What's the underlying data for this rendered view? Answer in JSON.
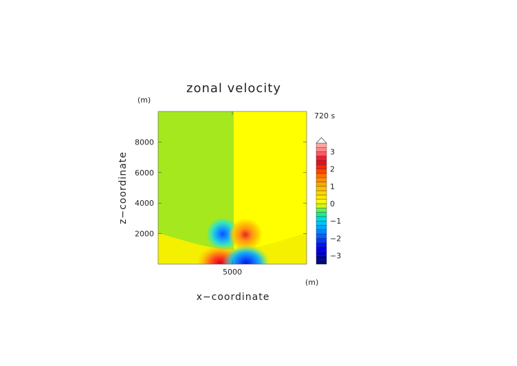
{
  "chart_data": {
    "type": "heatmap",
    "title": "zonal velocity",
    "xlabel": "x−coordinate",
    "ylabel": "z−coordinate",
    "x_unit": "(m)",
    "y_unit": "(m)",
    "time_label": "720 s",
    "xlim": [
      0,
      10000
    ],
    "ylim": [
      0,
      10000
    ],
    "x_ticks": [
      {
        "value": 5000,
        "label": "5000"
      }
    ],
    "y_ticks": [
      {
        "value": 2000,
        "label": "2000"
      },
      {
        "value": 4000,
        "label": "4000"
      },
      {
        "value": 6000,
        "label": "6000"
      },
      {
        "value": 8000,
        "label": "8000"
      }
    ],
    "colorbar": {
      "min": -3.5,
      "max": 3.5,
      "levels": [
        -3.5,
        -3.25,
        -3,
        -2.75,
        -2.5,
        -2.25,
        -2,
        -1.75,
        -1.5,
        -1.25,
        -1,
        -0.75,
        -0.5,
        -0.25,
        0,
        0.25,
        0.5,
        0.75,
        1,
        1.25,
        1.5,
        1.75,
        2,
        2.25,
        2.5,
        2.75,
        3,
        3.25,
        3.5
      ],
      "tick_labels": [
        {
          "value": 3,
          "label": "3"
        },
        {
          "value": 2,
          "label": "2"
        },
        {
          "value": 1,
          "label": "1"
        },
        {
          "value": 0,
          "label": "0"
        },
        {
          "value": -1,
          "label": "−1"
        },
        {
          "value": -2,
          "label": "−2"
        },
        {
          "value": -3,
          "label": "−3"
        }
      ],
      "extend": "max"
    },
    "features": [
      {
        "kind": "background",
        "x_range": [
          0,
          5000
        ],
        "value": -0.2
      },
      {
        "kind": "background",
        "x_range": [
          5000,
          10000
        ],
        "value": 0.2
      },
      {
        "kind": "low_level_band",
        "z_top_at_edges": 2000,
        "value": 0.1
      },
      {
        "kind": "cell",
        "x": 4200,
        "z": 1950,
        "value": -1.6
      },
      {
        "kind": "cell",
        "x": 5750,
        "z": 1900,
        "value": 1.8
      },
      {
        "kind": "cell",
        "x": 4200,
        "z": 350,
        "value": 2.9
      },
      {
        "kind": "cell",
        "x": 5800,
        "z": 350,
        "value": -2.9
      }
    ],
    "grid": false,
    "legend": "right"
  }
}
